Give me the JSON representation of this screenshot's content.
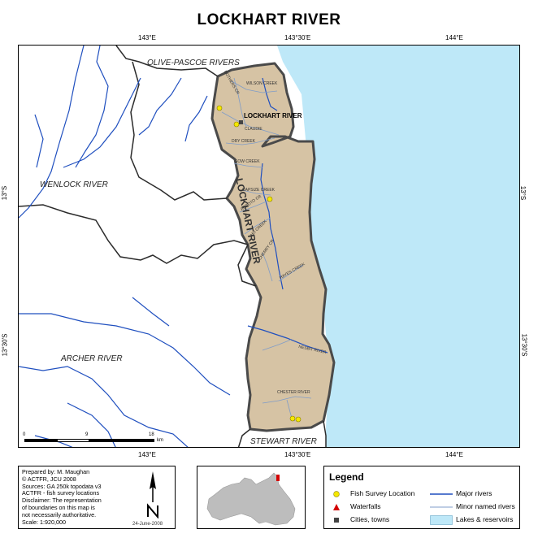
{
  "title": "LOCKHART RIVER",
  "coords": {
    "top": [
      "143°E",
      "143°30'E",
      "144°E"
    ],
    "bottom": [
      "143°E",
      "143°30'E",
      "144°E"
    ],
    "left": [
      "13°S",
      "13°30'S"
    ],
    "right": [
      "13°S",
      "13°30'S"
    ]
  },
  "regions": {
    "olive_pascoe": "OLIVE-PASCOE RIVERS",
    "wenlock": "WENLOCK RIVER",
    "archer": "ARCHER RIVER",
    "stewart": "STEWART RIVER",
    "lockhart": "LOCKHART RIVER"
  },
  "town": "LOCKHART RIVER",
  "river_labels": {
    "wilson": "WILSON CREEK",
    "bothers": "BOTHERS CR",
    "claudie": "CLAUDIE",
    "dry": "DRY CREEK",
    "sow": "SOW CREEK",
    "capsize": "CAPSIZE CREEK",
    "arroto": "ARROTO CR",
    "cherry": "CHERRY CR",
    "hayes": "HAYES CREEK",
    "nesbit": "NESBIT RIVER",
    "chester": "CHESTER RIVER",
    "ho": "HO CREEK"
  },
  "scale_bar": {
    "ticks": [
      "0",
      "9",
      "18"
    ],
    "unit": "km"
  },
  "info": {
    "lines": [
      "Prepared by: M. Maughan",
      "© ACTFR, JCU 2008",
      "Sources: GA 250k topodata v3",
      "ACTFR - fish survey locations",
      "Disclaimer: The representation",
      "of boundaries on this map is",
      "not necessarily authoritative.",
      "Scale: 1:920,000"
    ],
    "date": "24-June-2008"
  },
  "legend": {
    "title": "Legend",
    "items": [
      {
        "symbol": "fish-survey",
        "label": "Fish Survey Location"
      },
      {
        "symbol": "major-rivers",
        "label": "Major rivers"
      },
      {
        "symbol": "waterfalls",
        "label": "Waterfalls"
      },
      {
        "symbol": "minor-rivers",
        "label": "Minor named rivers"
      },
      {
        "symbol": "cities",
        "label": "Cities, towns"
      },
      {
        "symbol": "lakes",
        "label": "Lakes & reservoirs"
      }
    ]
  },
  "colors": {
    "sea": "#bee8f8",
    "catchment": "#d6c3a4",
    "catchment_border": "#4a4a4a",
    "major_river": "#1f4fbf",
    "minor_river": "#7f9cc8",
    "survey": "#f5e800",
    "waterfall": "#d40000",
    "city": "#444444",
    "inset_land": "#bdbdbd"
  }
}
